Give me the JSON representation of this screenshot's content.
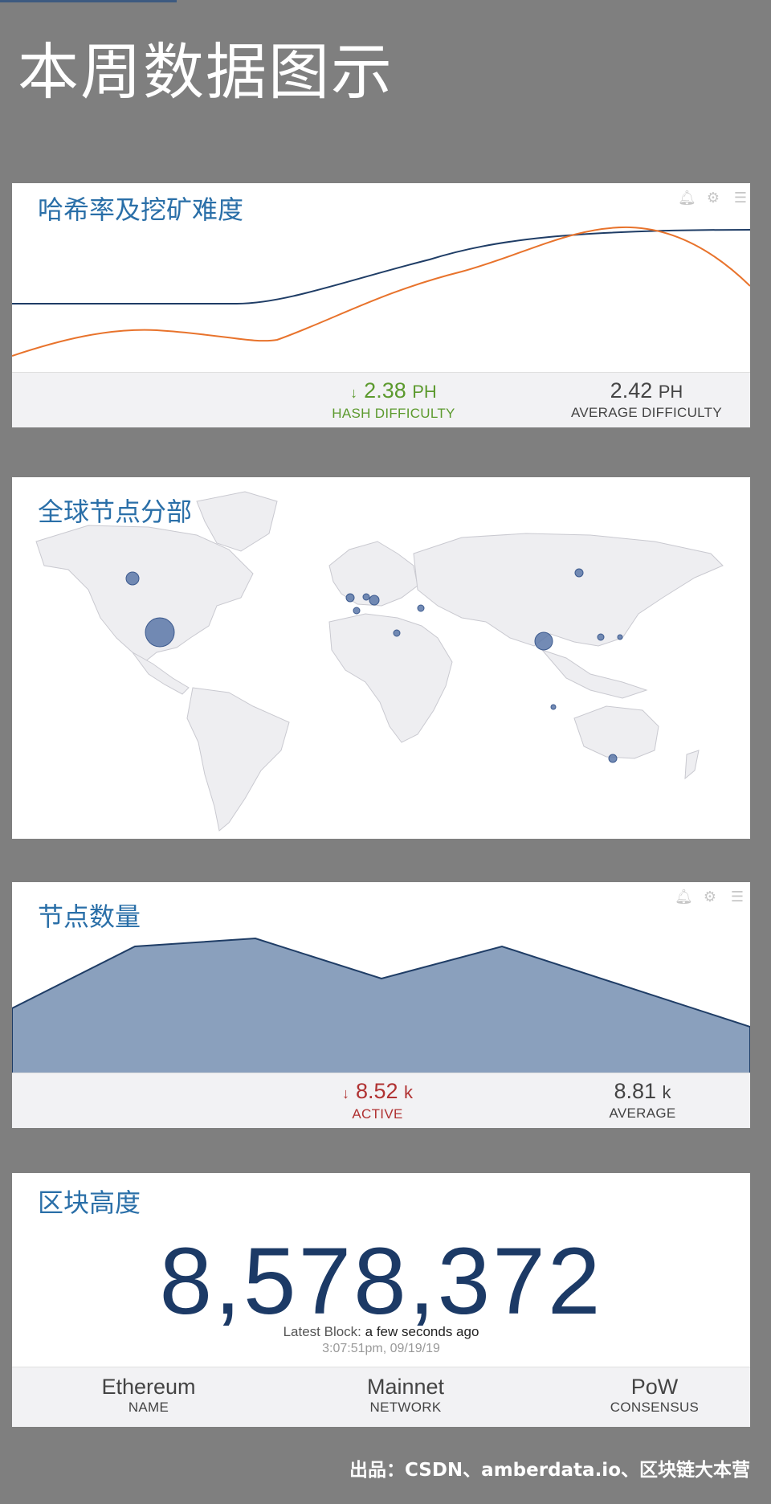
{
  "page": {
    "title": "本周数据图示",
    "footer": "出品：CSDN、amberdata.io、区块链大本营"
  },
  "colors": {
    "background": "#7f7f7f",
    "title_blue": "#2a6fa8",
    "hash_line": "#1f3d66",
    "difficulty_line": "#e8732c",
    "area_fill": "#8aa0bd",
    "map_dot": "#5a77a8"
  },
  "toolbar_icons": [
    "bell-icon",
    "gear-icon",
    "menu-icon"
  ],
  "hash_card": {
    "title": "哈希率及挖矿难度",
    "stat1": {
      "arrow": "↓",
      "value": "2.38",
      "unit": "PH",
      "label": "HASH DIFFICULTY"
    },
    "stat2": {
      "value": "2.42",
      "unit": "PH",
      "label": "AVERAGE DIFFICULTY"
    }
  },
  "map_card": {
    "title": "全球节点分部"
  },
  "nodes_card": {
    "title": "节点数量",
    "stat1": {
      "arrow": "↓",
      "value": "8.52",
      "unit": "k",
      "label": "ACTIVE"
    },
    "stat2": {
      "value": "8.81",
      "unit": "k",
      "label": "AVERAGE"
    }
  },
  "block_card": {
    "title": "区块高度",
    "height": "8,578,372",
    "latest_label": "Latest Block:",
    "latest_value": "a few seconds ago",
    "timestamp": "3:07:51pm, 09/19/19",
    "info": [
      {
        "value": "Ethereum",
        "key": "NAME"
      },
      {
        "value": "Mainnet",
        "key": "NETWORK"
      },
      {
        "value": "PoW",
        "key": "CONSENSUS"
      }
    ]
  }
}
